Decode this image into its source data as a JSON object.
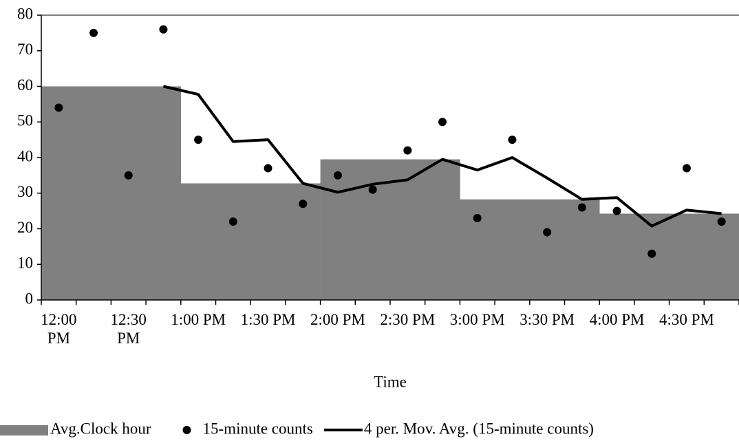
{
  "chart_data": {
    "type": "combo",
    "x_label": "Time",
    "categories": [
      "12:00 PM",
      null,
      "12:30 PM",
      null,
      "1:00 PM",
      null,
      "1:30 PM",
      null,
      "2:00 PM",
      null,
      "2:30 PM",
      null,
      "3:00 PM",
      null,
      "3:30 PM",
      null,
      "4:00 PM",
      null,
      "4:30 PM",
      null
    ],
    "series": [
      {
        "name": "Avg.Clock hour",
        "type": "bar",
        "color": "#808080",
        "values": [
          60,
          60,
          60,
          60,
          32.75,
          32.75,
          32.75,
          32.75,
          39.5,
          39.5,
          39.5,
          39.5,
          28.25,
          28.25,
          28.25,
          28.25,
          24.25,
          24.25,
          24.25,
          24.25
        ]
      },
      {
        "name": "15-minute counts",
        "type": "scatter",
        "color": "#000000",
        "values": [
          54,
          75,
          35,
          76,
          45,
          22,
          37,
          27,
          35,
          31,
          42,
          50,
          23,
          45,
          19,
          26,
          25,
          13,
          37,
          22
        ]
      },
      {
        "name": "4 per. Mov. Avg. (15-minute counts)",
        "type": "line",
        "color": "#000000",
        "values": [
          null,
          null,
          null,
          60,
          57.75,
          44.5,
          45,
          32.75,
          30.25,
          32.5,
          33.75,
          39.5,
          36.5,
          40,
          34.25,
          28.25,
          28.75,
          20.75,
          25.25,
          24.25
        ]
      }
    ],
    "ylim": [
      0,
      80
    ],
    "yticks": [
      0,
      10,
      20,
      30,
      40,
      50,
      60,
      70,
      80
    ],
    "grid": false
  }
}
